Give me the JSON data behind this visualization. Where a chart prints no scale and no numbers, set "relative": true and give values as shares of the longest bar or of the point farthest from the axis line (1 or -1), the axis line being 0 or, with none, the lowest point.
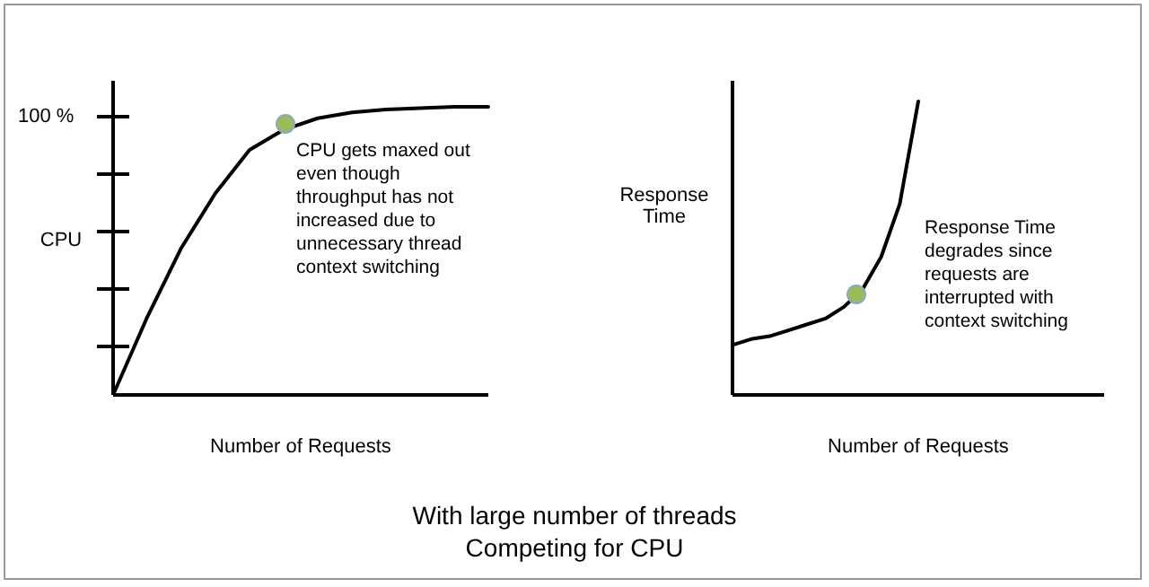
{
  "chart_data": [
    {
      "type": "line",
      "relative": true,
      "title": "With large number of threads\nCompeting for CPU",
      "xlabel": "Number of Requests",
      "ylabel": "CPU",
      "categories": [
        null,
        null,
        null,
        null,
        null,
        null,
        null,
        null,
        null,
        null,
        null,
        null
      ],
      "marker": "none",
      "series": [
        {
          "color": "#000000",
          "values": [
            0,
            0.27,
            0.51,
            0.7,
            0.85,
            0.92,
            0.96,
            0.98,
            0.99,
            0.995,
            1,
            1
          ]
        }
      ],
      "annotations": [
        "100 %",
        "CPU gets maxed out even though throughput has not increased due to unnecessary thread context switching"
      ]
    },
    {
      "type": "line",
      "relative": true,
      "xlabel": "Number of Requests",
      "ylabel": "Response Time",
      "categories": [
        null,
        null,
        null,
        null,
        null,
        null,
        null,
        null,
        null,
        null,
        null,
        null,
        null,
        null,
        null,
        null,
        null,
        null,
        null,
        null,
        null
      ],
      "marker": "none",
      "series": [
        {
          "color": "#000000",
          "values": [
            0.17,
            0.19,
            0.2,
            0.22,
            0.24,
            0.26,
            0.3,
            0.36,
            0.47,
            0.65,
            1,
            null,
            null,
            null,
            null,
            null,
            null,
            null,
            null,
            null,
            null
          ]
        }
      ],
      "annotations": [
        "Response Time degrades since requests are interrupted with context switching"
      ]
    }
  ]
}
